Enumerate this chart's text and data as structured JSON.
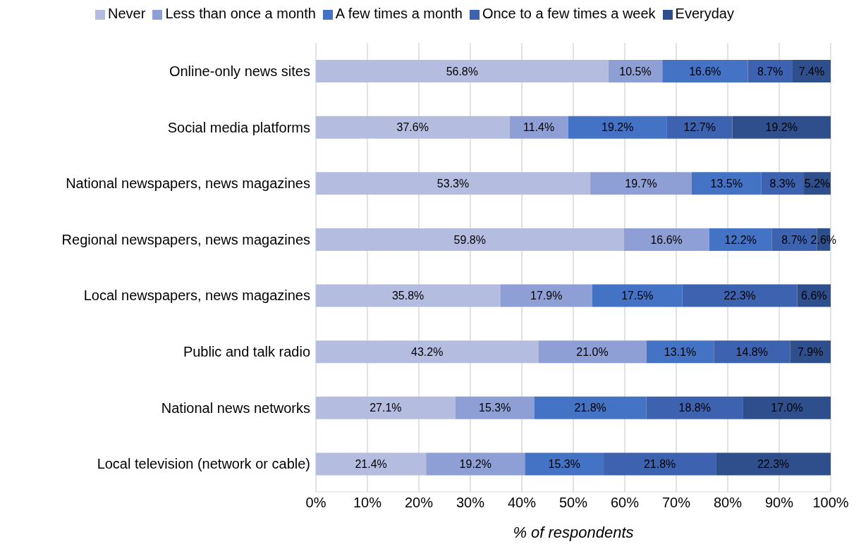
{
  "chart_data": {
    "type": "bar",
    "orientation": "horizontal",
    "stacked": true,
    "xlabel": "% of respondents",
    "categories": [
      "Online-only news sites",
      "Social media platforms",
      "National newspapers, news magazines",
      "Regional newspapers, news magazines",
      "Local newspapers, news magazines",
      "Public and talk radio",
      "National news networks",
      "Local television (network or cable)"
    ],
    "series": [
      {
        "name": "Never",
        "color": "#b4bde0",
        "values": [
          56.8,
          37.6,
          53.3,
          59.8,
          35.8,
          43.2,
          27.1,
          21.4
        ],
        "value_labels": [
          "56.8%",
          "37.6%",
          "53.3%",
          "59.8%",
          "35.8%",
          "43.2%",
          "27.1%",
          "21.4%"
        ]
      },
      {
        "name": "Less than once a month",
        "color": "#8e9fd6",
        "values": [
          10.5,
          11.4,
          19.7,
          16.6,
          17.9,
          21.0,
          15.3,
          19.2
        ],
        "value_labels": [
          "10.5%",
          "11.4%",
          "19.7%",
          "16.6%",
          "17.9%",
          "21.0%",
          "15.3%",
          "19.2%"
        ]
      },
      {
        "name": "A few times a month",
        "color": "#4472c4",
        "values": [
          16.6,
          19.2,
          13.5,
          12.2,
          17.5,
          13.1,
          21.8,
          15.3
        ],
        "value_labels": [
          "16.6%",
          "19.2%",
          "13.5%",
          "12.2%",
          "17.5%",
          "13.1%",
          "21.8%",
          "15.3%"
        ]
      },
      {
        "name": "Once to a few times a week",
        "color": "#3d62b0",
        "values": [
          8.7,
          12.7,
          8.3,
          8.7,
          22.3,
          14.8,
          18.8,
          21.8
        ],
        "value_labels": [
          "8.7%",
          "12.7%",
          "8.3%",
          "8.7%",
          "22.3%",
          "14.8%",
          "18.8%",
          "21.8%"
        ]
      },
      {
        "name": "Everyday",
        "color": "#2f4f8c",
        "values": [
          7.4,
          19.2,
          5.2,
          2.6,
          6.6,
          7.9,
          17.0,
          22.3
        ],
        "value_labels": [
          "7.4%",
          "19.2%",
          "5.2%",
          "2.6%",
          "6.6%",
          "7.9%",
          "17.0%",
          "22.3%"
        ]
      }
    ],
    "xlim": [
      0,
      100
    ],
    "xticks": [
      {
        "value": 0,
        "label": "0%"
      },
      {
        "value": 10,
        "label": "10%"
      },
      {
        "value": 20,
        "label": "20%"
      },
      {
        "value": 30,
        "label": "30%"
      },
      {
        "value": 40,
        "label": "40%"
      },
      {
        "value": 50,
        "label": "50%"
      },
      {
        "value": 60,
        "label": "60%"
      },
      {
        "value": 70,
        "label": "70%"
      },
      {
        "value": 80,
        "label": "80%"
      },
      {
        "value": 90,
        "label": "90%"
      },
      {
        "value": 100,
        "label": "100%"
      }
    ],
    "grid": "x",
    "legend": "top"
  }
}
